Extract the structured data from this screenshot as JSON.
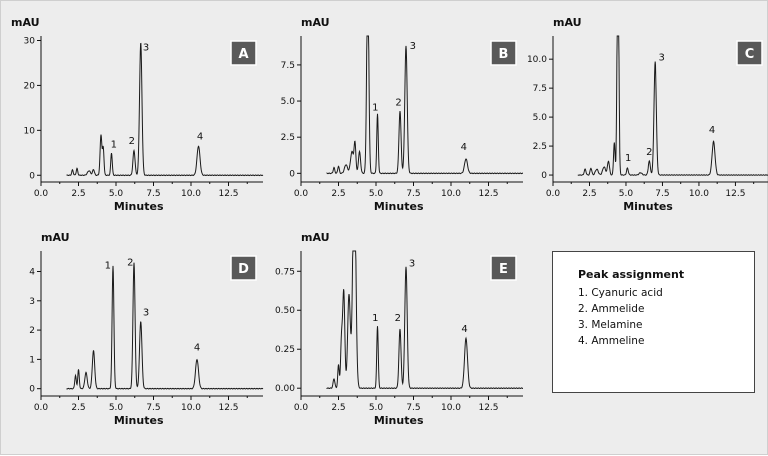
{
  "legend": {
    "title": "Peak assignment",
    "items": [
      "1. Cyanuric acid",
      "2. Ammelide",
      "3. Melamine",
      "4. Ammeline"
    ]
  },
  "colors": {
    "background": "#ededed",
    "badge": "#595959",
    "trace": "#1a1a1a"
  },
  "chart_data": [
    {
      "type": "line",
      "id": "A",
      "badge": "A",
      "ylabel": "mAU",
      "xlabel": "Minutes",
      "xlim": [
        0,
        14.8
      ],
      "ylim": [
        -1.5,
        31
      ],
      "xticks": [
        0,
        2.5,
        5,
        7.5,
        10,
        12.5
      ],
      "xtick_labels": [
        "0.0",
        "2.5",
        "5.0",
        "7.5",
        "10.0",
        "12.5"
      ],
      "yticks": [
        0,
        10,
        20,
        30
      ],
      "ytick_labels": [
        "0",
        "10",
        "20",
        "30"
      ],
      "baseline": 0,
      "peaks": [
        [
          2.1,
          1.2,
          0.05
        ],
        [
          2.4,
          1.5,
          0.05
        ],
        [
          3.2,
          1.0,
          0.1
        ],
        [
          3.5,
          1.3,
          0.06
        ],
        [
          4.0,
          9.0,
          0.06
        ],
        [
          4.15,
          6.0,
          0.05
        ],
        [
          4.7,
          5.0,
          0.05
        ],
        [
          6.2,
          5.5,
          0.07
        ],
        [
          6.65,
          29.5,
          0.08
        ],
        [
          10.5,
          6.5,
          0.1
        ]
      ],
      "labels": [
        {
          "text": "1",
          "x": 4.85,
          "y": 6.2
        },
        {
          "text": "2",
          "x": 6.05,
          "y": 7.0
        },
        {
          "text": "3",
          "x": 7.0,
          "y": 27.8
        },
        {
          "text": "4",
          "x": 10.6,
          "y": 8.0
        }
      ]
    },
    {
      "type": "line",
      "id": "B",
      "badge": "B",
      "ylabel": "mAU",
      "xlabel": "Minutes",
      "xlim": [
        0,
        14.8
      ],
      "ylim": [
        -0.6,
        9.5
      ],
      "xticks": [
        0,
        2.5,
        5,
        7.5,
        10,
        12.5
      ],
      "xtick_labels": [
        "0.0",
        "2.5",
        "5.0",
        "7.5",
        "10.0",
        "12.5"
      ],
      "yticks": [
        0,
        2.5,
        5,
        7.5
      ],
      "ytick_labels": [
        "0",
        "2.5",
        "5.0",
        "7.5"
      ],
      "baseline": 0,
      "peaks": [
        [
          2.2,
          0.4,
          0.05
        ],
        [
          2.5,
          0.5,
          0.05
        ],
        [
          3.0,
          0.6,
          0.1
        ],
        [
          3.4,
          1.5,
          0.1
        ],
        [
          3.6,
          2.0,
          0.06
        ],
        [
          3.9,
          1.5,
          0.07
        ],
        [
          4.45,
          14,
          0.07
        ],
        [
          5.1,
          4.1,
          0.05
        ],
        [
          6.6,
          4.3,
          0.07
        ],
        [
          7.0,
          8.8,
          0.08
        ],
        [
          11.0,
          1.0,
          0.1
        ]
      ],
      "labels": [
        {
          "text": "1",
          "x": 4.95,
          "y": 4.35
        },
        {
          "text": "2",
          "x": 6.5,
          "y": 4.7
        },
        {
          "text": "3",
          "x": 7.45,
          "y": 8.6
        },
        {
          "text": "4",
          "x": 10.85,
          "y": 1.6
        }
      ]
    },
    {
      "type": "line",
      "id": "C",
      "badge": "C",
      "ylabel": "mAU",
      "xlabel": "Minutes",
      "xlim": [
        0,
        14.8
      ],
      "ylim": [
        -0.6,
        12.0
      ],
      "xticks": [
        0,
        2.5,
        5,
        7.5,
        10,
        12.5
      ],
      "xtick_labels": [
        "0.0",
        "2.5",
        "5.0",
        "7.5",
        "10.0",
        "12.5"
      ],
      "yticks": [
        0,
        2.5,
        5,
        7.5,
        10
      ],
      "ytick_labels": [
        "0",
        "2.5",
        "5.0",
        "7.5",
        "10.0"
      ],
      "baseline": 0,
      "peaks": [
        [
          2.2,
          0.5,
          0.06
        ],
        [
          2.6,
          0.6,
          0.06
        ],
        [
          3.0,
          0.5,
          0.1
        ],
        [
          3.5,
          0.7,
          0.1
        ],
        [
          3.8,
          1.2,
          0.07
        ],
        [
          4.2,
          2.8,
          0.05
        ],
        [
          4.45,
          20,
          0.06
        ],
        [
          5.1,
          0.6,
          0.06
        ],
        [
          6.0,
          0.2,
          0.1
        ],
        [
          6.6,
          1.2,
          0.07
        ],
        [
          7.0,
          9.8,
          0.08
        ],
        [
          11.0,
          2.9,
          0.1
        ]
      ],
      "labels": [
        {
          "text": "1",
          "x": 5.15,
          "y": 1.2
        },
        {
          "text": "2",
          "x": 6.6,
          "y": 1.75
        },
        {
          "text": "3",
          "x": 7.45,
          "y": 9.9
        },
        {
          "text": "4",
          "x": 10.9,
          "y": 3.65
        }
      ]
    },
    {
      "type": "line",
      "id": "D",
      "badge": "D",
      "ylabel": "mAU",
      "xlabel": "Minutes",
      "xlim": [
        0,
        14.8
      ],
      "ylim": [
        -0.25,
        4.7
      ],
      "xticks": [
        0,
        2.5,
        5,
        7.5,
        10,
        12.5
      ],
      "xtick_labels": [
        "0.0",
        "2.5",
        "5.0",
        "7.5",
        "10.0",
        "12.5"
      ],
      "yticks": [
        0,
        1,
        2,
        3,
        4
      ],
      "ytick_labels": [
        "0",
        "1",
        "2",
        "3",
        "4"
      ],
      "baseline": 0,
      "peaks": [
        [
          2.3,
          0.45,
          0.05
        ],
        [
          2.5,
          0.65,
          0.05
        ],
        [
          3.0,
          0.55,
          0.08
        ],
        [
          3.5,
          1.3,
          0.08
        ],
        [
          4.8,
          4.2,
          0.06
        ],
        [
          6.2,
          4.3,
          0.07
        ],
        [
          6.65,
          2.3,
          0.08
        ],
        [
          10.4,
          1.0,
          0.1
        ]
      ],
      "labels": [
        {
          "text": "1",
          "x": 4.45,
          "y": 4.1
        },
        {
          "text": "2",
          "x": 5.95,
          "y": 4.2
        },
        {
          "text": "3",
          "x": 7.0,
          "y": 2.5
        },
        {
          "text": "4",
          "x": 10.4,
          "y": 1.3
        }
      ]
    },
    {
      "type": "line",
      "id": "E",
      "badge": "E",
      "ylabel": "mAU",
      "xlabel": "Minutes",
      "xlim": [
        0,
        14.8
      ],
      "ylim": [
        -0.05,
        0.88
      ],
      "xticks": [
        0,
        2.5,
        5,
        7.5,
        10,
        12.5
      ],
      "xtick_labels": [
        "0.0",
        "2.5",
        "5.0",
        "7.5",
        "10.0",
        "12.5"
      ],
      "yticks": [
        0,
        0.25,
        0.5,
        0.75
      ],
      "ytick_labels": [
        "0.00",
        "0.25",
        "0.50",
        "0.75"
      ],
      "baseline": 0,
      "peaks": [
        [
          2.2,
          0.06,
          0.06
        ],
        [
          2.5,
          0.15,
          0.05
        ],
        [
          2.7,
          0.3,
          0.06
        ],
        [
          2.85,
          0.62,
          0.07
        ],
        [
          3.2,
          0.6,
          0.09
        ],
        [
          3.55,
          1.5,
          0.1
        ],
        [
          5.1,
          0.4,
          0.05
        ],
        [
          6.6,
          0.38,
          0.07
        ],
        [
          7.0,
          0.78,
          0.08
        ],
        [
          11.0,
          0.32,
          0.1
        ]
      ],
      "labels": [
        {
          "text": "1",
          "x": 4.95,
          "y": 0.43
        },
        {
          "text": "2",
          "x": 6.45,
          "y": 0.43
        },
        {
          "text": "3",
          "x": 7.4,
          "y": 0.78
        },
        {
          "text": "4",
          "x": 10.9,
          "y": 0.36
        }
      ]
    }
  ]
}
